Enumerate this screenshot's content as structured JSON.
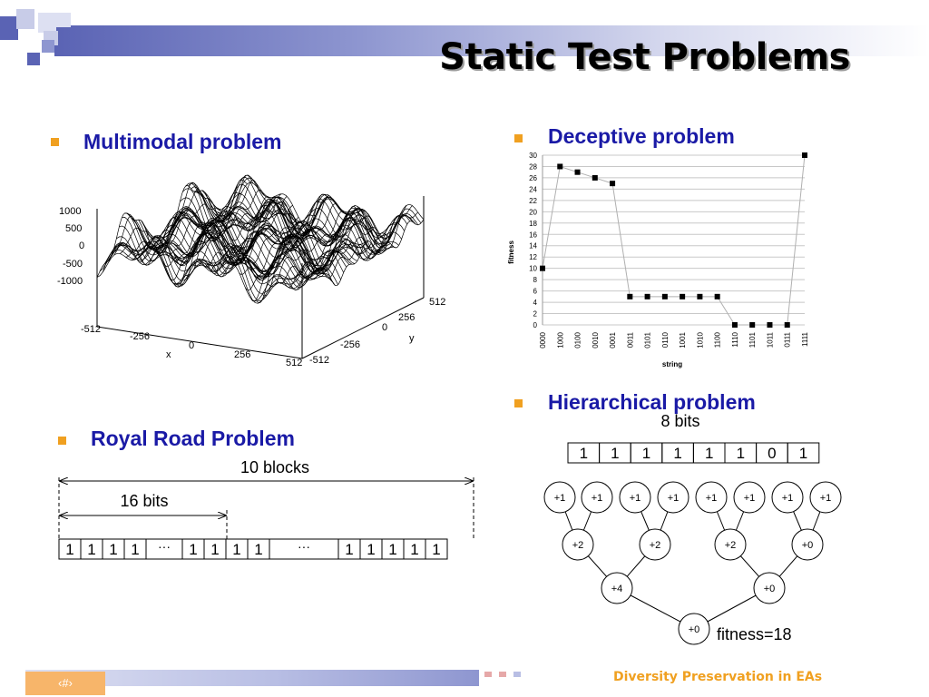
{
  "slide": {
    "title": "Static Test Problems",
    "footer": "Diversity Preservation in EAs",
    "page_number": "‹#›"
  },
  "sections": {
    "multimodal": {
      "heading": "Multimodal problem"
    },
    "deceptive": {
      "heading": "Deceptive problem"
    },
    "royal_road": {
      "heading": "Royal Road Problem"
    },
    "hierarchical": {
      "heading": "Hierarchical problem"
    }
  },
  "surface_plot": {
    "z_ticks": [
      "1000",
      "500",
      "0",
      "-500",
      "-1000"
    ],
    "x_ticks": [
      "-512",
      "-256",
      "0",
      "256",
      "512"
    ],
    "y_ticks": [
      "-512",
      "-256",
      "0",
      "256",
      "512"
    ],
    "x_label": "x",
    "y_label": "y"
  },
  "royal_road": {
    "blocks_label": "10 blocks",
    "bits_label": "16 bits",
    "cells": [
      "1",
      "1",
      "1",
      "1",
      "···",
      "1",
      "1",
      "1",
      "1",
      "···",
      "1",
      "1",
      "1",
      "1",
      "1"
    ]
  },
  "hierarchical": {
    "bits_label": "8 bits",
    "bits": [
      "1",
      "1",
      "1",
      "1",
      "1",
      "1",
      "0",
      "1"
    ],
    "level1": [
      "+1",
      "+1",
      "+1",
      "+1",
      "+1",
      "+1",
      "+1",
      "+1"
    ],
    "level2": [
      "+2",
      "+2",
      "+2",
      "+0"
    ],
    "level3": [
      "+4",
      "+0"
    ],
    "root": "+0",
    "fitness_label": "fitness=18"
  },
  "colors": {
    "accent": "#f0a020",
    "heading": "#1a1aa6",
    "band": "#5a63b4"
  },
  "chart_data": {
    "type": "scatter",
    "title": "",
    "xlabel": "string",
    "ylabel": "fitness",
    "categories": [
      "0000",
      "1000",
      "0100",
      "0010",
      "0001",
      "0011",
      "0101",
      "0110",
      "1001",
      "1010",
      "1100",
      "1110",
      "1101",
      "1011",
      "0111",
      "1111"
    ],
    "values": [
      10,
      28,
      27,
      26,
      25,
      5,
      5,
      5,
      5,
      5,
      5,
      0,
      0,
      0,
      0,
      30
    ],
    "ylim": [
      0,
      30
    ],
    "yticks": [
      "0",
      "2",
      "4",
      "6",
      "8",
      "10",
      "12",
      "14",
      "16",
      "18",
      "20",
      "22",
      "24",
      "26",
      "28",
      "30"
    ],
    "grid": true
  }
}
